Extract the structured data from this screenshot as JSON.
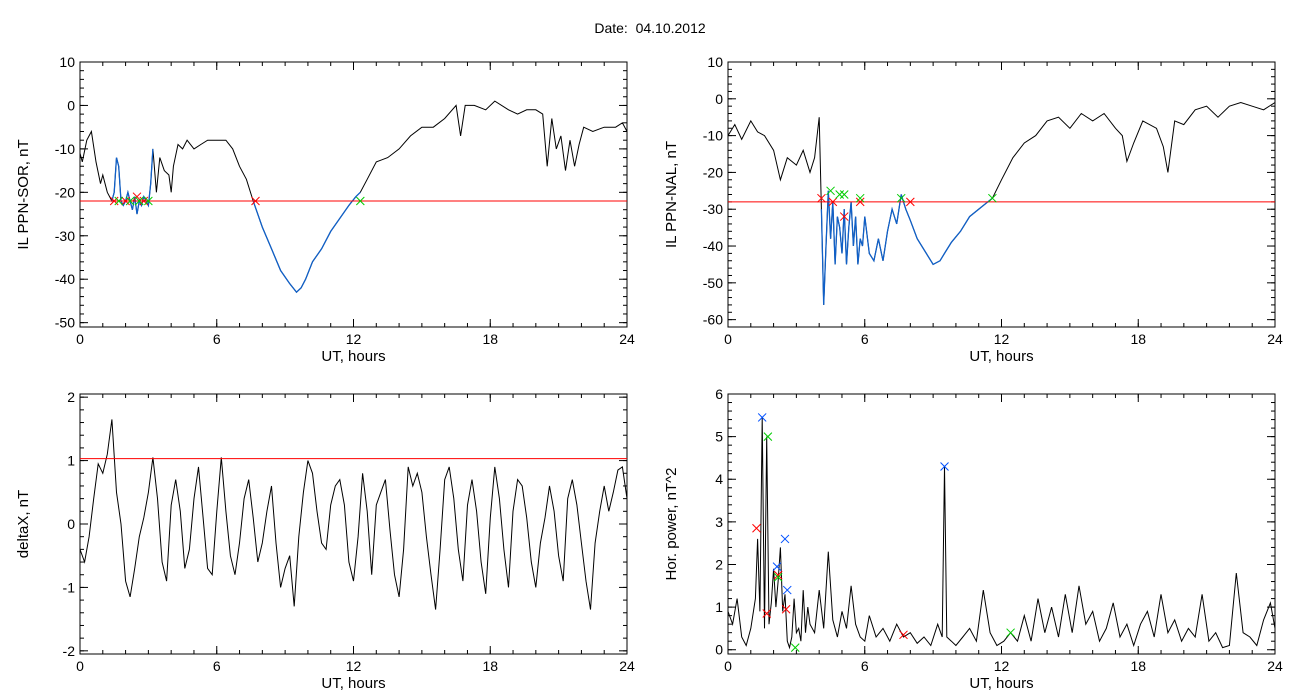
{
  "page_title": "Date:  04.10.2012",
  "colors": {
    "line": "#000000",
    "selected": "#1060c8",
    "threshold": "#ff0000",
    "start_marker": "#ff0000",
    "end_marker": "#00cc00",
    "peak_marker": "#0050ff"
  },
  "chart_data": [
    {
      "id": "p1",
      "type": "line",
      "xlabel": "UT, hours",
      "ylabel": "IL PPN-SOR, nT",
      "xlim": [
        0,
        24
      ],
      "ylim": [
        -51,
        10
      ],
      "xticks": [
        0,
        6,
        12,
        18,
        24
      ],
      "yticks": [
        10,
        0,
        -10,
        -20,
        -30,
        -40,
        -50
      ],
      "threshold": -22,
      "highlight_ranges": [
        [
          1.3,
          3.2
        ],
        [
          7.6,
          12.3
        ]
      ],
      "series": [
        {
          "x": [
            0,
            0.1,
            0.3,
            0.5,
            0.7,
            0.9,
            1.0,
            1.2,
            1.4,
            1.5,
            1.6,
            1.7,
            1.8,
            1.9,
            2.0,
            2.1,
            2.2,
            2.3,
            2.4,
            2.5,
            2.6,
            2.7,
            2.8,
            2.9,
            3.0,
            3.1,
            3.2,
            3.35,
            3.5,
            3.7,
            3.9,
            4.0,
            4.1,
            4.3,
            4.5,
            4.7,
            5.0,
            5.3,
            5.6,
            6.0,
            6.4,
            6.7,
            7.0,
            7.3,
            7.6,
            8.0,
            8.4,
            8.8,
            9.2,
            9.5,
            9.7,
            9.9,
            10.2,
            10.6,
            11.0,
            11.4,
            11.8,
            12.1,
            12.3,
            12.6,
            13.0,
            13.5,
            14.0,
            14.5,
            15.0,
            15.5,
            16.0,
            16.5,
            16.7,
            16.9,
            17.3,
            17.8,
            18.2,
            18.8,
            19.2,
            19.6,
            20.0,
            20.3,
            20.5,
            20.7,
            20.9,
            21.1,
            21.3,
            21.5,
            21.7,
            21.9,
            22.1,
            22.5,
            23.0,
            23.5,
            23.8,
            24.0
          ],
          "y": [
            -11,
            -13,
            -8,
            -6,
            -13,
            -18,
            -16,
            -20,
            -22,
            -20,
            -12,
            -14,
            -22,
            -23,
            -22,
            -20,
            -22,
            -24,
            -21,
            -25,
            -22,
            -23,
            -21,
            -22,
            -23,
            -18,
            -10,
            -20,
            -12,
            -15,
            -16,
            -20,
            -14,
            -9,
            -10,
            -8,
            -10,
            -9,
            -8,
            -8,
            -8,
            -10,
            -14,
            -17,
            -22,
            -28,
            -33,
            -38,
            -41,
            -43,
            -42,
            -40,
            -36,
            -33,
            -29,
            -26,
            -23,
            -21,
            -20,
            -17,
            -13,
            -12,
            -10,
            -7,
            -5,
            -5,
            -3,
            0,
            -7,
            0,
            0,
            -1,
            1,
            -1,
            -2,
            -1,
            -1,
            -2,
            -14,
            -3,
            -10,
            -7,
            -15,
            -8,
            -14,
            -9,
            -5,
            -6,
            -5,
            -5,
            -4,
            -6
          ]
        }
      ],
      "markers": [
        {
          "x": 1.5,
          "y": -22,
          "color": "red"
        },
        {
          "x": 2.0,
          "y": -22,
          "color": "red"
        },
        {
          "x": 2.5,
          "y": -21,
          "color": "red"
        },
        {
          "x": 2.8,
          "y": -22,
          "color": "red"
        },
        {
          "x": 1.7,
          "y": -22,
          "color": "green"
        },
        {
          "x": 2.2,
          "y": -22,
          "color": "green"
        },
        {
          "x": 2.6,
          "y": -22,
          "color": "green"
        },
        {
          "x": 3.0,
          "y": -22,
          "color": "green"
        },
        {
          "x": 7.7,
          "y": -22,
          "color": "red"
        },
        {
          "x": 12.3,
          "y": -22,
          "color": "green"
        }
      ]
    },
    {
      "id": "p2",
      "type": "line",
      "xlabel": "UT, hours",
      "ylabel": "IL PPN-NAL, nT",
      "xlim": [
        0,
        24
      ],
      "ylim": [
        -62,
        10
      ],
      "xticks": [
        0,
        6,
        12,
        18,
        24
      ],
      "yticks": [
        10,
        0,
        -10,
        -20,
        -30,
        -40,
        -50,
        -60
      ],
      "threshold": -28,
      "highlight_ranges": [
        [
          4.1,
          11.6
        ]
      ],
      "series": [
        {
          "x": [
            0,
            0.3,
            0.6,
            1.0,
            1.3,
            1.6,
            2.0,
            2.3,
            2.6,
            3.0,
            3.3,
            3.6,
            3.8,
            4.0,
            4.1,
            4.2,
            4.3,
            4.4,
            4.5,
            4.6,
            4.7,
            4.8,
            4.9,
            5.0,
            5.1,
            5.2,
            5.3,
            5.4,
            5.5,
            5.6,
            5.7,
            5.8,
            5.9,
            6.0,
            6.2,
            6.4,
            6.6,
            6.8,
            7.0,
            7.2,
            7.4,
            7.6,
            7.8,
            8.0,
            8.3,
            8.7,
            9.0,
            9.3,
            9.5,
            9.8,
            10.2,
            10.6,
            11.0,
            11.4,
            11.6,
            12.0,
            12.5,
            13.0,
            13.5,
            14.0,
            14.5,
            15.0,
            15.5,
            16.0,
            16.5,
            17.0,
            17.3,
            17.5,
            17.8,
            18.2,
            18.8,
            19.1,
            19.3,
            19.6,
            20.0,
            20.5,
            21.0,
            21.5,
            22.0,
            22.5,
            23.0,
            23.5,
            24.0
          ],
          "y": [
            -10,
            -7,
            -11,
            -6,
            -9,
            -10,
            -14,
            -22,
            -16,
            -18,
            -14,
            -20,
            -16,
            -5,
            -30,
            -56,
            -40,
            -25,
            -38,
            -28,
            -45,
            -32,
            -35,
            -42,
            -30,
            -45,
            -35,
            -28,
            -40,
            -32,
            -45,
            -38,
            -40,
            -32,
            -42,
            -44,
            -38,
            -44,
            -36,
            -30,
            -34,
            -26,
            -30,
            -33,
            -38,
            -42,
            -45,
            -44,
            -42,
            -39,
            -36,
            -32,
            -30,
            -28,
            -27,
            -22,
            -16,
            -12,
            -10,
            -6,
            -5,
            -8,
            -4,
            -6,
            -4,
            -8,
            -10,
            -17,
            -12,
            -6,
            -8,
            -13,
            -20,
            -6,
            -7,
            -3,
            -2,
            -5,
            -2,
            -1,
            -2,
            -3,
            -1
          ]
        }
      ],
      "markers": [
        {
          "x": 4.1,
          "y": -27,
          "color": "red"
        },
        {
          "x": 4.6,
          "y": -28,
          "color": "red"
        },
        {
          "x": 5.1,
          "y": -32,
          "color": "red"
        },
        {
          "x": 5.8,
          "y": -28,
          "color": "red"
        },
        {
          "x": 8.0,
          "y": -28,
          "color": "red"
        },
        {
          "x": 4.5,
          "y": -25,
          "color": "green"
        },
        {
          "x": 4.9,
          "y": -26,
          "color": "green"
        },
        {
          "x": 5.1,
          "y": -26,
          "color": "green"
        },
        {
          "x": 5.8,
          "y": -27,
          "color": "green"
        },
        {
          "x": 7.6,
          "y": -27,
          "color": "green"
        },
        {
          "x": 11.6,
          "y": -27,
          "color": "green"
        }
      ]
    },
    {
      "id": "p3",
      "type": "line",
      "xlabel": "UT, hours",
      "ylabel": "deltaX, nT",
      "xlim": [
        0,
        24
      ],
      "ylim": [
        -2.05,
        2.05
      ],
      "xticks": [
        0,
        6,
        12,
        18,
        24
      ],
      "yticks": [
        2,
        1,
        0,
        -1,
        -2
      ],
      "threshold": 1.03,
      "highlight_ranges": [],
      "series": [
        {
          "x": [
            0,
            0.2,
            0.4,
            0.6,
            0.8,
            1.0,
            1.2,
            1.4,
            1.6,
            1.8,
            2.0,
            2.2,
            2.4,
            2.6,
            2.8,
            3.0,
            3.2,
            3.4,
            3.6,
            3.8,
            4.0,
            4.2,
            4.4,
            4.6,
            4.8,
            5.0,
            5.2,
            5.4,
            5.6,
            5.8,
            6.0,
            6.2,
            6.4,
            6.6,
            6.8,
            7.0,
            7.2,
            7.4,
            7.6,
            7.8,
            8.0,
            8.2,
            8.4,
            8.6,
            8.8,
            9.0,
            9.2,
            9.4,
            9.6,
            9.8,
            10.0,
            10.2,
            10.4,
            10.6,
            10.8,
            11.0,
            11.2,
            11.4,
            11.6,
            11.8,
            12.0,
            12.2,
            12.4,
            12.6,
            12.8,
            13.0,
            13.2,
            13.4,
            13.6,
            13.8,
            14.0,
            14.2,
            14.4,
            14.6,
            14.8,
            15.0,
            15.2,
            15.4,
            15.6,
            15.8,
            16.0,
            16.2,
            16.4,
            16.6,
            16.8,
            17.0,
            17.2,
            17.4,
            17.6,
            17.8,
            18.0,
            18.2,
            18.4,
            18.6,
            18.8,
            19.0,
            19.2,
            19.4,
            19.6,
            19.8,
            20.0,
            20.2,
            20.4,
            20.6,
            20.8,
            21.0,
            21.2,
            21.4,
            21.6,
            21.8,
            22.0,
            22.2,
            22.4,
            22.6,
            22.8,
            23.0,
            23.2,
            23.4,
            23.6,
            23.8,
            24.0
          ],
          "y": [
            -0.4,
            -0.6,
            -0.2,
            0.4,
            0.95,
            0.8,
            1.1,
            1.65,
            0.5,
            0,
            -0.9,
            -1.15,
            -0.7,
            -0.2,
            0.1,
            0.5,
            1.05,
            0.4,
            -0.6,
            -0.9,
            0.3,
            0.7,
            0.2,
            -0.7,
            -0.4,
            0.4,
            0.9,
            0.1,
            -0.7,
            -0.8,
            0.2,
            1.05,
            0.2,
            -0.5,
            -0.8,
            -0.3,
            0.4,
            0.7,
            0.1,
            -0.6,
            -0.3,
            0.2,
            0.6,
            -0.3,
            -1.0,
            -0.7,
            -0.5,
            -1.3,
            -0.2,
            0.5,
            1.0,
            0.8,
            0.2,
            -0.3,
            -0.4,
            0.3,
            0.6,
            0.7,
            0.3,
            -0.6,
            -0.9,
            -0.2,
            0.8,
            0.2,
            -0.8,
            0.3,
            0.5,
            0.7,
            -0.1,
            -0.8,
            -1.15,
            -0.4,
            0.9,
            0.6,
            0.8,
            0.5,
            -0.2,
            -0.8,
            -1.35,
            -0.4,
            0.7,
            0.9,
            0.4,
            -0.4,
            -0.9,
            0.3,
            0.7,
            0.2,
            -0.6,
            -1.1,
            0.1,
            0.9,
            0.4,
            -0.4,
            -1.0,
            0.2,
            0.7,
            0.6,
            0.1,
            -0.6,
            -1.0,
            -0.3,
            0.1,
            0.6,
            0.2,
            -0.5,
            -0.9,
            0.4,
            0.7,
            0.3,
            -0.3,
            -0.9,
            -1.35,
            -0.3,
            0.2,
            0.6,
            0.2,
            0.5,
            0.85,
            0.9,
            0.4
          ]
        }
      ],
      "markers": []
    },
    {
      "id": "p4",
      "type": "line",
      "xlabel": "UT, hours",
      "ylabel": "Hor. power, nT^2",
      "xlim": [
        0,
        24
      ],
      "ylim": [
        -0.1,
        6.0
      ],
      "xticks": [
        0,
        6,
        12,
        18,
        24
      ],
      "yticks": [
        6,
        5,
        4,
        3,
        2,
        1,
        0
      ],
      "threshold": null,
      "highlight_ranges": [],
      "series": [
        {
          "x": [
            0,
            0.2,
            0.4,
            0.6,
            0.8,
            1.0,
            1.2,
            1.3,
            1.4,
            1.5,
            1.6,
            1.7,
            1.8,
            1.9,
            2.0,
            2.1,
            2.2,
            2.3,
            2.4,
            2.5,
            2.6,
            2.7,
            2.8,
            2.9,
            3.0,
            3.1,
            3.2,
            3.3,
            3.4,
            3.5,
            3.6,
            3.8,
            4.0,
            4.2,
            4.4,
            4.6,
            4.8,
            5.0,
            5.2,
            5.4,
            5.6,
            5.8,
            6.0,
            6.2,
            6.5,
            6.8,
            7.1,
            7.4,
            7.7,
            8.0,
            8.3,
            8.6,
            8.9,
            9.2,
            9.4,
            9.5,
            9.6,
            9.8,
            10.0,
            10.3,
            10.6,
            10.9,
            11.2,
            11.5,
            11.8,
            12.1,
            12.4,
            12.7,
            13.0,
            13.3,
            13.6,
            13.9,
            14.2,
            14.5,
            14.8,
            15.1,
            15.4,
            15.7,
            16.0,
            16.3,
            16.6,
            16.9,
            17.2,
            17.5,
            17.8,
            18.1,
            18.4,
            18.7,
            19.0,
            19.3,
            19.6,
            19.9,
            20.2,
            20.5,
            20.8,
            21.1,
            21.4,
            21.7,
            22.0,
            22.3,
            22.6,
            22.9,
            23.2,
            23.5,
            23.8,
            24.0
          ],
          "y": [
            0.9,
            0.6,
            1.2,
            0.3,
            0.1,
            0.5,
            1.2,
            2.6,
            0.9,
            5.45,
            0.5,
            5.0,
            0.6,
            1.1,
            1.9,
            1.0,
            1.6,
            2.4,
            0.9,
            1.3,
            0.2,
            0.05,
            0.3,
            1.2,
            0.4,
            0.5,
            0.2,
            1.4,
            0.4,
            1.0,
            0.6,
            0.4,
            1.4,
            0.5,
            2.3,
            0.7,
            0.3,
            0.9,
            0.5,
            1.5,
            0.6,
            0.3,
            0.2,
            0.8,
            0.3,
            0.5,
            0.2,
            0.6,
            0.3,
            0.4,
            0.15,
            0.3,
            0.1,
            0.6,
            0.3,
            4.3,
            0.3,
            0.2,
            0.1,
            0.3,
            0.5,
            0.2,
            1.4,
            0.4,
            0.1,
            0.2,
            0.4,
            0.2,
            0.8,
            0.2,
            1.2,
            0.4,
            1.0,
            0.3,
            1.3,
            0.4,
            1.5,
            0.6,
            0.9,
            0.2,
            0.5,
            1.1,
            0.3,
            0.6,
            0.1,
            0.6,
            0.9,
            0.3,
            1.3,
            0.4,
            0.7,
            0.2,
            0.5,
            0.3,
            1.3,
            0.2,
            0.4,
            0.05,
            0.1,
            1.8,
            0.4,
            0.3,
            0.1,
            0.7,
            1.1,
            0.5
          ]
        }
      ],
      "markers": [
        {
          "x": 1.25,
          "y": 2.85,
          "color": "red"
        },
        {
          "x": 1.7,
          "y": 0.85,
          "color": "red"
        },
        {
          "x": 2.2,
          "y": 1.75,
          "color": "red"
        },
        {
          "x": 2.55,
          "y": 0.95,
          "color": "red"
        },
        {
          "x": 7.7,
          "y": 0.35,
          "color": "red"
        },
        {
          "x": 1.75,
          "y": 5.0,
          "color": "green"
        },
        {
          "x": 2.2,
          "y": 1.7,
          "color": "green"
        },
        {
          "x": 2.95,
          "y": 0.05,
          "color": "green"
        },
        {
          "x": 12.4,
          "y": 0.4,
          "color": "green"
        },
        {
          "x": 1.5,
          "y": 5.45,
          "color": "blue"
        },
        {
          "x": 2.15,
          "y": 1.95,
          "color": "blue"
        },
        {
          "x": 2.5,
          "y": 2.6,
          "color": "blue"
        },
        {
          "x": 2.6,
          "y": 1.4,
          "color": "blue"
        },
        {
          "x": 9.5,
          "y": 4.3,
          "color": "blue"
        }
      ]
    }
  ]
}
